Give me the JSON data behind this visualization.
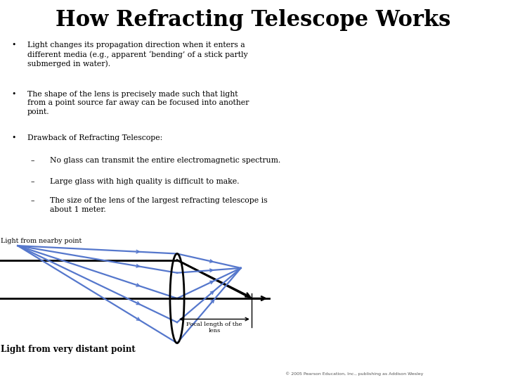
{
  "title": "How Refracting Telescope Works",
  "bg_color": "#ffffff",
  "title_color": "#000000",
  "title_fontsize": 22,
  "bullet_points": [
    "Light changes its propagation direction when it enters a\ndifferent media (e.g., apparent ‘bending’ of a stick partly\nsubmerged in water).",
    "The shape of the lens is precisely made such that light\nfrom a point source far away can be focused into another\npoint.",
    "Drawback of Refracting Telescope:"
  ],
  "sub_bullets": [
    "No glass can transmit the entire electromagnetic spectrum.",
    "Large glass with high quality is difficult to make.",
    "The size of the lens of the largest refracting telescope is\nabout 1 meter."
  ],
  "label_nearby": "Light from nearby point",
  "label_distant": "Light from very distant point",
  "label_focal": "Focal length of the\nlens",
  "line_color": "#000000",
  "blue_color": "#5577cc",
  "text_color": "#000000",
  "copyright": "© 2005 Pearson Education, Inc., publishing as Addison Wesley"
}
